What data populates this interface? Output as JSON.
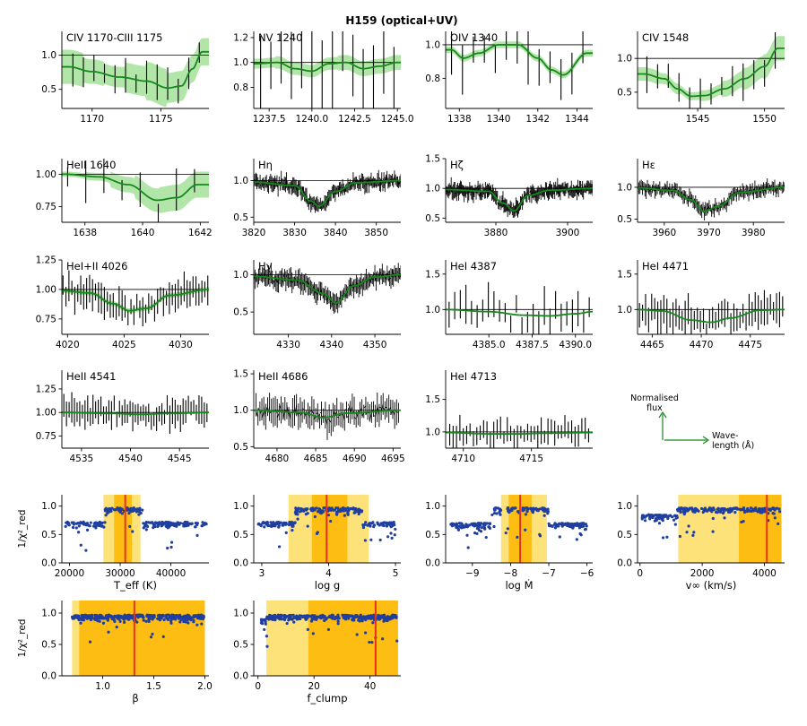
{
  "title": "H159 (optical+UV)",
  "colors": {
    "fit": "#15891d",
    "band": "#7ed56f",
    "obs": "#000000",
    "dots": "#1f3fa0",
    "best": "#e8321e",
    "band1": "#fde27a",
    "band2": "#fdbd12",
    "axis": "#000000"
  },
  "legend": {
    "flux": "Normalised\nflux",
    "wave": "Wave-\nlength (Å)"
  },
  "chart_data": [
    {
      "type": "line",
      "title": "CIV 1170-CIII 1175",
      "xlim": [
        1167.8,
        1178.5
      ],
      "ylim": [
        0.22,
        1.35
      ],
      "xticks": [
        1170,
        1175
      ],
      "yticks": [
        0.5,
        1.0
      ],
      "ref": 1.0,
      "fit": [
        [
          1168.3,
          0.83
        ],
        [
          1170,
          0.76
        ],
        [
          1172,
          0.68
        ],
        [
          1174,
          0.62
        ],
        [
          1175.5,
          0.52
        ],
        [
          1176.5,
          0.55
        ],
        [
          1177.3,
          0.8
        ],
        [
          1178,
          1.05
        ]
      ],
      "band_width": [
        0.25,
        0.18,
        0.15,
        0.22,
        0.28,
        0.22,
        0.2
      ],
      "obs_x0": 1168.6,
      "obs_x1": 1177.8,
      "obs_n": 13,
      "obs_sigma": 0.1,
      "obs_err": 0.2,
      "seed": 11
    },
    {
      "type": "line",
      "title": "NV 1240",
      "xlim": [
        1236.6,
        1245.2
      ],
      "ylim": [
        0.63,
        1.25
      ],
      "xticks": [
        1237.5,
        1240.0,
        1242.5,
        1245.0
      ],
      "xticklabels": [
        "1237.5",
        "1240.0",
        "1242.5",
        "1245.0"
      ],
      "yticks": [
        0.8,
        1.0,
        1.2
      ],
      "ref": 1.0,
      "fit": [
        [
          1236.7,
          0.99
        ],
        [
          1238,
          1.0
        ],
        [
          1239,
          0.95
        ],
        [
          1240,
          0.93
        ],
        [
          1241,
          0.99
        ],
        [
          1242,
          1.0
        ],
        [
          1243,
          0.95
        ],
        [
          1244,
          0.97
        ],
        [
          1245,
          1.0
        ]
      ],
      "band_width": [
        0.04,
        0.05,
        0.05,
        0.05,
        0.06,
        0.06,
        0.06
      ],
      "obs_x0": 1237.0,
      "obs_x1": 1244.8,
      "obs_n": 14,
      "obs_sigma": 0.15,
      "obs_err": 0.25,
      "seed": 12
    },
    {
      "type": "line",
      "title": "OIV 1340",
      "xlim": [
        1337.3,
        1344.8
      ],
      "ylim": [
        0.62,
        1.08
      ],
      "xticks": [
        1338,
        1340,
        1342,
        1344
      ],
      "yticks": [
        0.8,
        1.0
      ],
      "ref": 1.0,
      "fit": [
        [
          1337.6,
          0.97
        ],
        [
          1338.2,
          0.92
        ],
        [
          1339,
          0.95
        ],
        [
          1340,
          1.0
        ],
        [
          1341,
          1.0
        ],
        [
          1342,
          0.92
        ],
        [
          1342.7,
          0.85
        ],
        [
          1343.3,
          0.82
        ],
        [
          1344.5,
          0.95
        ]
      ],
      "band_width": [
        0.02,
        0.02,
        0.02,
        0.02,
        0.02,
        0.02,
        0.02
      ],
      "obs_x0": 1337.6,
      "obs_x1": 1344.3,
      "obs_n": 13,
      "obs_sigma": 0.08,
      "obs_err": 0.12,
      "seed": 13
    },
    {
      "type": "line",
      "title": "CIV 1548",
      "xlim": [
        1540.5,
        1551.5
      ],
      "ylim": [
        0.26,
        1.4
      ],
      "xticks": [
        1545,
        1550
      ],
      "yticks": [
        0.5,
        1.0
      ],
      "ref": 1.0,
      "fit": [
        [
          1541,
          0.77
        ],
        [
          1542.5,
          0.7
        ],
        [
          1543.5,
          0.55
        ],
        [
          1544.5,
          0.44
        ],
        [
          1545.5,
          0.45
        ],
        [
          1547,
          0.55
        ],
        [
          1548.5,
          0.7
        ],
        [
          1550,
          0.88
        ],
        [
          1551,
          1.15
        ]
      ],
      "band_width": [
        0.1,
        0.08,
        0.06,
        0.08,
        0.12,
        0.16,
        0.18
      ],
      "obs_x0": 1541.2,
      "obs_x1": 1550.8,
      "obs_n": 13,
      "obs_sigma": 0.1,
      "obs_err": 0.2,
      "seed": 14
    },
    {
      "type": "line",
      "title": "HeII 1640",
      "xlim": [
        1637.2,
        1642.3
      ],
      "ylim": [
        0.63,
        1.12
      ],
      "xticks": [
        1638,
        1640,
        1642
      ],
      "yticks": [
        0.75,
        1.0
      ],
      "yticklabels": [
        "0.75",
        "1.00"
      ],
      "ref": 1.0,
      "fit": [
        [
          1637.3,
          1.0
        ],
        [
          1638.5,
          0.98
        ],
        [
          1639.5,
          0.92
        ],
        [
          1640.5,
          0.8
        ],
        [
          1641.2,
          0.82
        ],
        [
          1641.9,
          0.92
        ]
      ],
      "band_width": [
        0.02,
        0.03,
        0.06,
        0.09,
        0.1,
        0.1
      ],
      "obs_x0": 1637.4,
      "obs_x1": 1641.8,
      "obs_n": 8,
      "obs_sigma": 0.08,
      "obs_err": 0.12,
      "seed": 15
    },
    {
      "type": "line",
      "title": "Hη",
      "xlim": [
        3820,
        3856
      ],
      "ylim": [
        0.43,
        1.3
      ],
      "xticks": [
        3820,
        3830,
        3840,
        3850
      ],
      "yticks": [
        0.5,
        1.0
      ],
      "ref": 1.0,
      "fit": [
        [
          3820,
          0.98
        ],
        [
          3830,
          0.93
        ],
        [
          3834,
          0.72
        ],
        [
          3836,
          0.65
        ],
        [
          3840,
          0.85
        ],
        [
          3845,
          0.97
        ],
        [
          3856,
          1.0
        ]
      ],
      "band_width": [
        0.02,
        0.02,
        0.02,
        0.02,
        0.02,
        0.02
      ],
      "obs_x0": 3820,
      "obs_x1": 3856,
      "obs_n": 140,
      "obs_sigma": 0.06,
      "obs_err": 0.08,
      "seed": 16
    },
    {
      "type": "line",
      "title": "Hζ",
      "xlim": [
        3866,
        3907
      ],
      "ylim": [
        0.43,
        1.5
      ],
      "xticks": [
        3880,
        3900
      ],
      "yticks": [
        0.5,
        1.0,
        1.5
      ],
      "ref": 1.0,
      "fit": [
        [
          3866,
          0.98
        ],
        [
          3878,
          0.95
        ],
        [
          3882,
          0.75
        ],
        [
          3885,
          0.62
        ],
        [
          3889,
          0.88
        ],
        [
          3895,
          0.97
        ],
        [
          3907,
          1.0
        ]
      ],
      "band_width": [
        0.02,
        0.02,
        0.02,
        0.02,
        0.02,
        0.02
      ],
      "obs_x0": 3866,
      "obs_x1": 3907,
      "obs_n": 160,
      "obs_sigma": 0.07,
      "obs_err": 0.1,
      "seed": 17
    },
    {
      "type": "line",
      "title": "Hε",
      "xlim": [
        3954,
        3987
      ],
      "ylim": [
        0.45,
        1.45
      ],
      "xticks": [
        3960,
        3970,
        3980
      ],
      "yticks": [
        0.5,
        1.0
      ],
      "ref": 1.0,
      "fit": [
        [
          3954,
          0.99
        ],
        [
          3962,
          0.95
        ],
        [
          3966,
          0.8
        ],
        [
          3969,
          0.62
        ],
        [
          3972,
          0.7
        ],
        [
          3977,
          0.92
        ],
        [
          3987,
          1.0
        ]
      ],
      "band_width": [
        0.02,
        0.02,
        0.02,
        0.02,
        0.02,
        0.02
      ],
      "obs_x0": 3954,
      "obs_x1": 3987,
      "obs_n": 120,
      "obs_sigma": 0.06,
      "obs_err": 0.08,
      "seed": 18
    },
    {
      "type": "line",
      "title": "HeI+II 4026",
      "xlim": [
        4019.5,
        4032.5
      ],
      "ylim": [
        0.62,
        1.25
      ],
      "xticks": [
        4020,
        4025,
        4030
      ],
      "yticks": [
        0.75,
        1.0,
        1.25
      ],
      "yticklabels": [
        "0.75",
        "1.00",
        "1.25"
      ],
      "ref": 1.0,
      "fit": [
        [
          4019.5,
          0.99
        ],
        [
          4022,
          0.97
        ],
        [
          4024,
          0.88
        ],
        [
          4025.5,
          0.82
        ],
        [
          4027,
          0.84
        ],
        [
          4029,
          0.95
        ],
        [
          4032.5,
          1.0
        ]
      ],
      "band_width": [
        0.02,
        0.02,
        0.02,
        0.02,
        0.02,
        0.02
      ],
      "obs_x0": 4019.6,
      "obs_x1": 4032.4,
      "obs_n": 50,
      "obs_sigma": 0.06,
      "obs_err": 0.1,
      "seed": 19
    },
    {
      "type": "line",
      "title": "Hγ",
      "xlim": [
        4322,
        4356
      ],
      "ylim": [
        0.2,
        1.2
      ],
      "xticks": [
        4330,
        4340,
        4350
      ],
      "yticks": [
        0.5,
        1.0
      ],
      "ref": 1.0,
      "fit": [
        [
          4322,
          0.98
        ],
        [
          4332,
          0.93
        ],
        [
          4338,
          0.75
        ],
        [
          4341,
          0.62
        ],
        [
          4345,
          0.85
        ],
        [
          4350,
          0.97
        ],
        [
          4356,
          1.0
        ]
      ],
      "band_width": [
        0.02,
        0.02,
        0.02,
        0.02,
        0.02,
        0.02
      ],
      "obs_x0": 4322,
      "obs_x1": 4356,
      "obs_n": 120,
      "obs_sigma": 0.06,
      "obs_err": 0.1,
      "seed": 20
    },
    {
      "type": "line",
      "title": "HeI 4387",
      "xlim": [
        4382.5,
        4391
      ],
      "ylim": [
        0.65,
        1.7
      ],
      "xticks": [
        4385.0,
        4387.5,
        4390.0
      ],
      "xticklabels": [
        "4385.0",
        "4387.5",
        "4390.0"
      ],
      "yticks": [
        1.0,
        1.5
      ],
      "ref": 1.0,
      "fit": [
        [
          4382.5,
          1.0
        ],
        [
          4385,
          0.97
        ],
        [
          4387,
          0.92
        ],
        [
          4388.5,
          0.91
        ],
        [
          4390,
          0.94
        ],
        [
          4391,
          0.97
        ]
      ],
      "band_width": [
        0.01,
        0.01,
        0.01,
        0.01,
        0.01
      ],
      "obs_x0": 4382.7,
      "obs_x1": 4390.8,
      "obs_n": 26,
      "obs_sigma": 0.15,
      "obs_err": 0.2,
      "seed": 21
    },
    {
      "type": "line",
      "title": "HeI 4471",
      "xlim": [
        4463.5,
        4478.5
      ],
      "ylim": [
        0.65,
        1.7
      ],
      "xticks": [
        4465,
        4470,
        4475
      ],
      "yticks": [
        1.0,
        1.5
      ],
      "ref": 1.0,
      "fit": [
        [
          4463.5,
          1.0
        ],
        [
          4466,
          0.98
        ],
        [
          4469,
          0.85
        ],
        [
          4471,
          0.82
        ],
        [
          4473,
          0.88
        ],
        [
          4476,
          0.99
        ],
        [
          4478.5,
          1.0
        ]
      ],
      "band_width": [
        0.01,
        0.01,
        0.01,
        0.01,
        0.01,
        0.01
      ],
      "obs_x0": 4463.7,
      "obs_x1": 4478.3,
      "obs_n": 48,
      "obs_sigma": 0.12,
      "obs_err": 0.18,
      "seed": 22
    },
    {
      "type": "line",
      "title": "HeII 4541",
      "xlim": [
        4533,
        4548
      ],
      "ylim": [
        0.62,
        1.45
      ],
      "xticks": [
        4535,
        4540,
        4545
      ],
      "yticks": [
        0.75,
        1.0,
        1.25
      ],
      "yticklabels": [
        "0.75",
        "1.00",
        "1.25"
      ],
      "ref": 1.0,
      "fit": [
        [
          4533,
          1.0
        ],
        [
          4538,
          0.99
        ],
        [
          4541,
          0.98
        ],
        [
          4544,
          0.99
        ],
        [
          4548,
          1.0
        ]
      ],
      "band_width": [
        0.01,
        0.01,
        0.01,
        0.01
      ],
      "obs_x0": 4533.2,
      "obs_x1": 4547.8,
      "obs_n": 55,
      "obs_sigma": 0.08,
      "obs_err": 0.12,
      "seed": 23
    },
    {
      "type": "line",
      "title": "HeII 4686",
      "xlim": [
        4677,
        4696
      ],
      "ylim": [
        0.48,
        1.55
      ],
      "xticks": [
        4680,
        4685,
        4690,
        4695
      ],
      "yticks": [
        0.5,
        1.0,
        1.5
      ],
      "ref": 1.0,
      "fit": [
        [
          4677,
          1.0
        ],
        [
          4683,
          0.97
        ],
        [
          4686,
          0.9
        ],
        [
          4689,
          0.96
        ],
        [
          4696,
          1.0
        ]
      ],
      "band_width": [
        0.01,
        0.01,
        0.01,
        0.01
      ],
      "obs_x0": 4677.3,
      "obs_x1": 4695.7,
      "obs_n": 75,
      "obs_sigma": 0.1,
      "obs_err": 0.15,
      "seed": 24
    },
    {
      "type": "line",
      "title": "HeI 4713",
      "xlim": [
        4708.7,
        4719.5
      ],
      "ylim": [
        0.75,
        1.95
      ],
      "xticks": [
        4710,
        4715
      ],
      "yticks": [
        1.0,
        1.5
      ],
      "ref": 1.0,
      "fit": [
        [
          4708.7,
          0.99
        ],
        [
          4712,
          0.97
        ],
        [
          4714,
          0.97
        ],
        [
          4716,
          0.98
        ],
        [
          4719.5,
          0.99
        ]
      ],
      "band_width": [
        0.01,
        0.01,
        0.01,
        0.01
      ],
      "obs_x0": 4709,
      "obs_x1": 4719.2,
      "obs_n": 42,
      "obs_sigma": 0.1,
      "obs_err": 0.15,
      "seed": 25
    },
    {
      "type": "scatter",
      "xlabel": "T_eff (K)",
      "xlim": [
        18500,
        47500
      ],
      "ylim": [
        0,
        1.2
      ],
      "xticks": [
        20000,
        30000,
        40000
      ],
      "yticks": [
        0.0,
        0.5,
        1.0
      ],
      "ylabel": "1/χ²_red",
      "best": 31000,
      "band1": [
        26700,
        34000
      ],
      "band2": [
        28800,
        32300
      ],
      "peak_lo": 27000,
      "peak_hi": 34500,
      "x0": 19200,
      "x1": 47000,
      "base": 0.72,
      "npts": 240,
      "seed": 31
    },
    {
      "type": "scatter",
      "xlabel": "log g",
      "xlim": [
        2.88,
        5.08
      ],
      "ylim": [
        0,
        1.2
      ],
      "xticks": [
        3,
        4,
        5
      ],
      "yticks": [
        0.0,
        0.5,
        1.0
      ],
      "best": 3.97,
      "band1": [
        3.4,
        4.6
      ],
      "band2": [
        3.75,
        4.28
      ],
      "peak_lo": 3.5,
      "peak_hi": 4.5,
      "x0": 2.95,
      "x1": 5.0,
      "base": 0.72,
      "npts": 240,
      "seed": 32
    },
    {
      "type": "scatter",
      "xlabel": "log Ṁ",
      "xlim": [
        -9.7,
        -5.85
      ],
      "ylim": [
        0,
        1.2
      ],
      "xticks": [
        -9,
        -8,
        -7,
        -6
      ],
      "xticklabels": [
        "−9",
        "−8",
        "−7",
        "−6"
      ],
      "yticks": [
        0.0,
        0.5,
        1.0
      ],
      "best": -7.75,
      "band1": [
        -8.25,
        -7.05
      ],
      "band2": [
        -8.05,
        -7.45
      ],
      "peak_lo": -8.5,
      "peak_hi": -7.0,
      "x0": -9.6,
      "x1": -6.0,
      "base": 0.7,
      "npts": 240,
      "seed": 33
    },
    {
      "type": "scatter",
      "xlabel": "v∞ (km/s)",
      "xlim": [
        -80,
        4650
      ],
      "ylim": [
        0,
        1.2
      ],
      "xticks": [
        0,
        2000,
        4000
      ],
      "yticks": [
        0.0,
        0.5,
        1.0
      ],
      "best": 4080,
      "band1": [
        1230,
        4550
      ],
      "band2": [
        3180,
        4550
      ],
      "peak_lo": 1200,
      "peak_hi": 4550,
      "x0": 50,
      "x1": 4550,
      "base": 0.85,
      "npts": 260,
      "seed": 34
    },
    {
      "type": "scatter",
      "xlabel": "β",
      "xlim": [
        0.6,
        2.04
      ],
      "ylim": [
        0,
        1.2
      ],
      "xticks": [
        1.0,
        1.5,
        2.0
      ],
      "xticklabels": [
        "1.0",
        "1.5",
        "2.0"
      ],
      "yticks": [
        0.0,
        0.5,
        1.0
      ],
      "ylabel": "1/χ²_red",
      "best": 1.31,
      "band1": [
        0.7,
        2.0
      ],
      "band2": [
        0.77,
        2.0
      ],
      "peak_lo": 0.7,
      "peak_hi": 2.0,
      "x0": 0.7,
      "x1": 2.0,
      "base": 0.92,
      "npts": 320,
      "seed": 35
    },
    {
      "type": "scatter",
      "xlabel": "f_clump",
      "xlim": [
        -1.5,
        51
      ],
      "ylim": [
        0,
        1.2
      ],
      "xticks": [
        0,
        20,
        40
      ],
      "yticks": [
        0.0,
        0.5,
        1.0
      ],
      "best": 42,
      "band1": [
        3,
        50
      ],
      "band2": [
        18,
        50
      ],
      "peak_lo": 3,
      "peak_hi": 50,
      "x0": 1,
      "x1": 50,
      "base": 0.9,
      "npts": 320,
      "seed": 36
    }
  ]
}
